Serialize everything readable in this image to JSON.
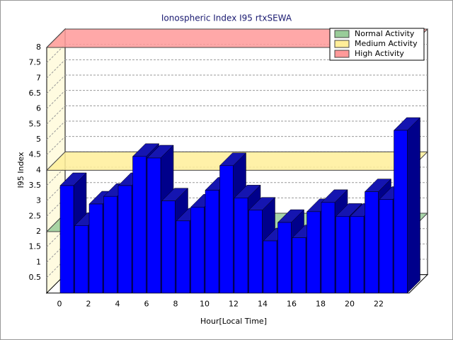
{
  "chart_data": {
    "type": "bar3d",
    "title": "Ionospheric Index I95 rtxSEWA",
    "x_label": "Hour[Local Time]",
    "y_label": "I95 Index",
    "categories": [
      "0",
      null,
      "2",
      null,
      "4",
      null,
      "6",
      null,
      "8",
      null,
      "10",
      null,
      "12",
      null,
      "14",
      null,
      "16",
      null,
      "18",
      null,
      "20",
      null,
      "22",
      null
    ],
    "values": [
      3.5,
      2.2,
      2.9,
      3.15,
      3.5,
      4.45,
      4.4,
      3.0,
      2.35,
      2.8,
      3.35,
      4.15,
      3.1,
      2.7,
      1.7,
      2.3,
      1.8,
      2.65,
      2.95,
      2.5,
      2.5,
      3.3,
      3.05,
      5.3
    ],
    "color": "#0000ff",
    "ylim": [
      0,
      8
    ],
    "yticks": [
      0.5,
      1,
      1.5,
      2,
      2.5,
      3,
      3.5,
      4,
      4.5,
      5,
      5.5,
      6,
      6.5,
      7,
      7.5,
      8
    ],
    "grid": true,
    "legend": "top-right",
    "thresholds": [
      {
        "name": "Normal Activity",
        "color": "#99cc99",
        "value": 2
      },
      {
        "name": "Medium Activity",
        "color": "#ffee99",
        "value": 4
      },
      {
        "name": "High Activity",
        "color": "#ff9999",
        "value": 8
      }
    ]
  }
}
